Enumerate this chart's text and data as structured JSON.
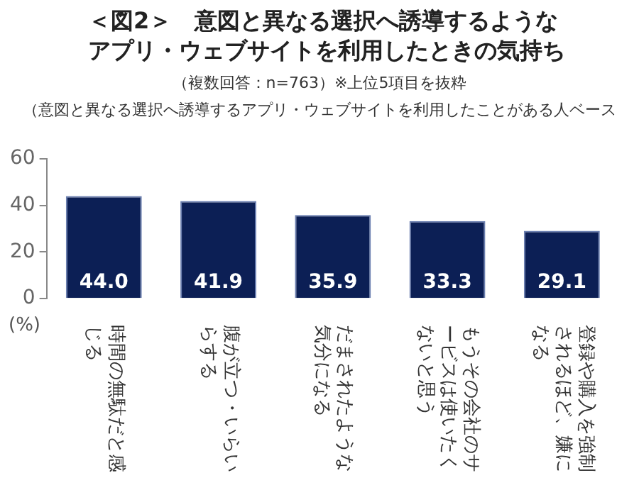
{
  "chart_data": {
    "type": "bar",
    "title": "＜図2＞　意図と異なる選択へ誘導するようなアプリ・ウェブサイトを利用したときの気持ち",
    "subtitle": "（複数回答：n=763）※上位5項目を抜粋",
    "annotations": [
      "（意図と異なる選択へ誘導するアプリ・ウェブサイトを利用したことがある人ベース"
    ],
    "ylabel": "(%)",
    "categories": [
      "時間の無駄だと感じる",
      "腹が立つ・いらいらする",
      "だまされたような気分になる",
      "もうその会社のサービスは使いたくないと思う",
      "登録や購入を強制されるほど、嫌になる"
    ],
    "values": [
      44.0,
      41.9,
      35.9,
      33.3,
      29.1
    ],
    "value_labels": [
      "44.0",
      "41.9",
      "35.9",
      "33.3",
      "29.1"
    ],
    "color": "#0c1f55",
    "ylim": [
      0,
      60
    ],
    "yticks": [
      0,
      20,
      40,
      60
    ],
    "grid": false
  }
}
